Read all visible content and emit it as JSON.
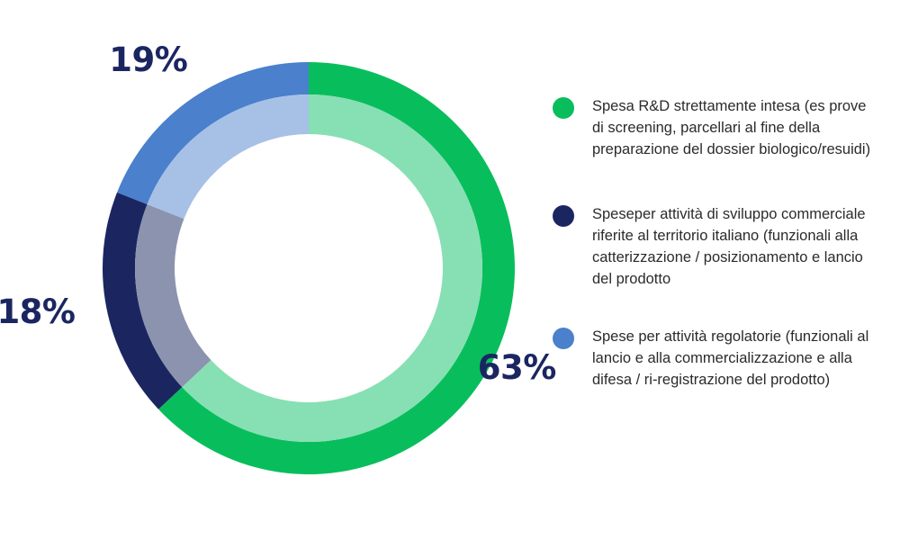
{
  "chart_data": {
    "type": "pie",
    "style": "donut",
    "values": [
      63,
      18,
      19
    ],
    "value_labels": [
      "63%",
      "18%",
      "19%"
    ],
    "series": [
      {
        "name": "Spesa R&D strettamente intesa (es prove di screening, parcellari al fine della preparazione del dossier biologico/resuidi)",
        "value": 63,
        "color": "#08be5c",
        "inner_color": "#86e0b3"
      },
      {
        "name": "Speseper attività di sviluppo commerciale riferite al territorio italiano (funzionali alla catterizzazione / posizionamento e lancio del prodotto",
        "value": 18,
        "color": "#1b2661",
        "inner_color": "#8c93ae"
      },
      {
        "name": "Spese per attività regolatorie (funzionali al lancio e alla commercializzazione e alla difesa / ri-registrazione del prodotto)",
        "value": 19,
        "color": "#4a80cc",
        "inner_color": "#a7c0e6"
      }
    ],
    "legend_position": "right"
  }
}
